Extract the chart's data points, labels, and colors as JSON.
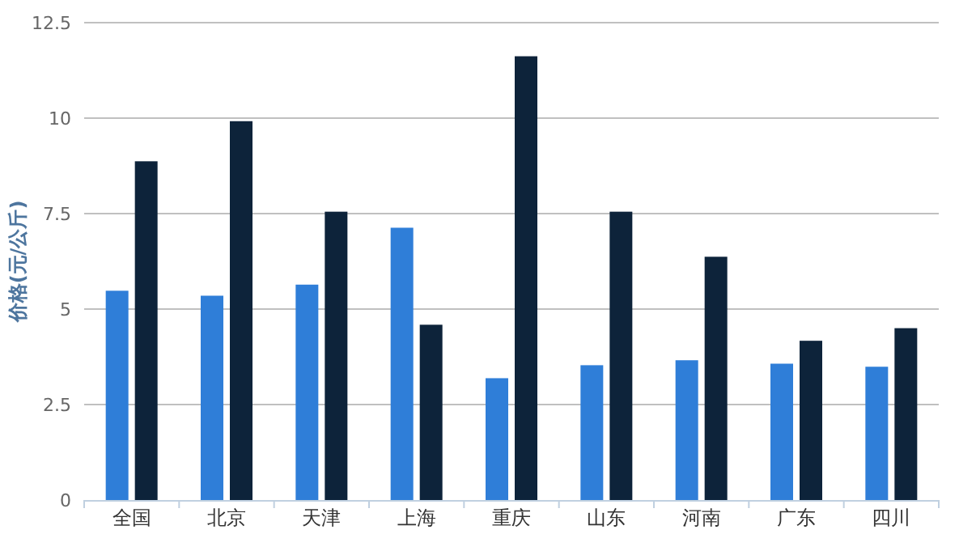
{
  "chart_data": {
    "type": "bar",
    "ylabel": "价格(元/公斤)",
    "categories": [
      "全国",
      "北京",
      "天津",
      "上海",
      "重庆",
      "山东",
      "河南",
      "广东",
      "四川"
    ],
    "series": [
      {
        "color": "#2f7ed8",
        "values": [
          5.48,
          5.35,
          5.64,
          7.13,
          3.19,
          3.53,
          3.66,
          3.57,
          3.49
        ]
      },
      {
        "color": "#0d233a",
        "values": [
          8.87,
          9.92,
          7.55,
          4.59,
          11.62,
          7.55,
          6.37,
          4.17,
          4.5
        ]
      }
    ],
    "ylim": [
      0,
      12.5
    ],
    "yticks": [
      0,
      2.5,
      5,
      7.5,
      10,
      12.5
    ],
    "grid": "y"
  }
}
